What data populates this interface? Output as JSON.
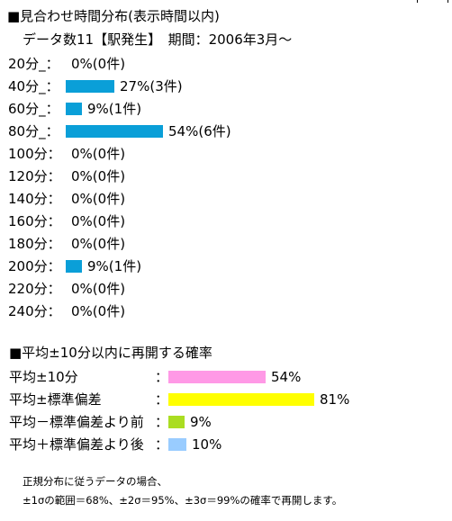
{
  "chart_data": [
    {
      "type": "bar",
      "orientation": "horizontal",
      "title": "■見合わせ時間分布(表示時間以内)",
      "subtitle": "データ数11【駅発生】　期間：2006年3月～",
      "categories": [
        "20分_：",
        "40分_：",
        "60分_：",
        "80分_：",
        "100分：",
        "120分：",
        "140分：",
        "160分：",
        "180分：",
        "200分：",
        "220分：",
        "240分："
      ],
      "values": [
        0,
        27,
        9,
        54,
        0,
        0,
        0,
        0,
        0,
        9,
        0,
        0
      ],
      "value_labels": [
        "0%(0件)",
        "27%(3件)",
        "9%(1件)",
        "54%(6件)",
        "0%(0件)",
        "0%(0件)",
        "0%(0件)",
        "0%(0件)",
        "0%(0件)",
        "9%(1件)",
        "0%(0件)",
        "0%(0件)"
      ],
      "unit": "%",
      "xlim": [
        0,
        100
      ],
      "bar_color": "#0a9fd8"
    },
    {
      "type": "bar",
      "orientation": "horizontal",
      "title": "■平均±10分以内に再開する確率",
      "categories": [
        "平均±10分",
        "平均±標準偏差",
        "平均－標準偏差より前",
        "平均＋標準偏差より後"
      ],
      "separators": [
        "：",
        "：",
        "：",
        "："
      ],
      "values": [
        54,
        81,
        9,
        10
      ],
      "value_labels": [
        "54%",
        "81%",
        "9%",
        "10%"
      ],
      "unit": "%",
      "xlim": [
        0,
        100
      ],
      "colors": [
        "#ff99e6",
        "#ffff00",
        "#aadd22",
        "#99ccff"
      ]
    }
  ],
  "note": {
    "line1": "正規分布に従うデータの場合、",
    "line2": "±1σの範囲＝68%、±2σ＝95%、±3σ＝99%の確率で再開します。"
  }
}
